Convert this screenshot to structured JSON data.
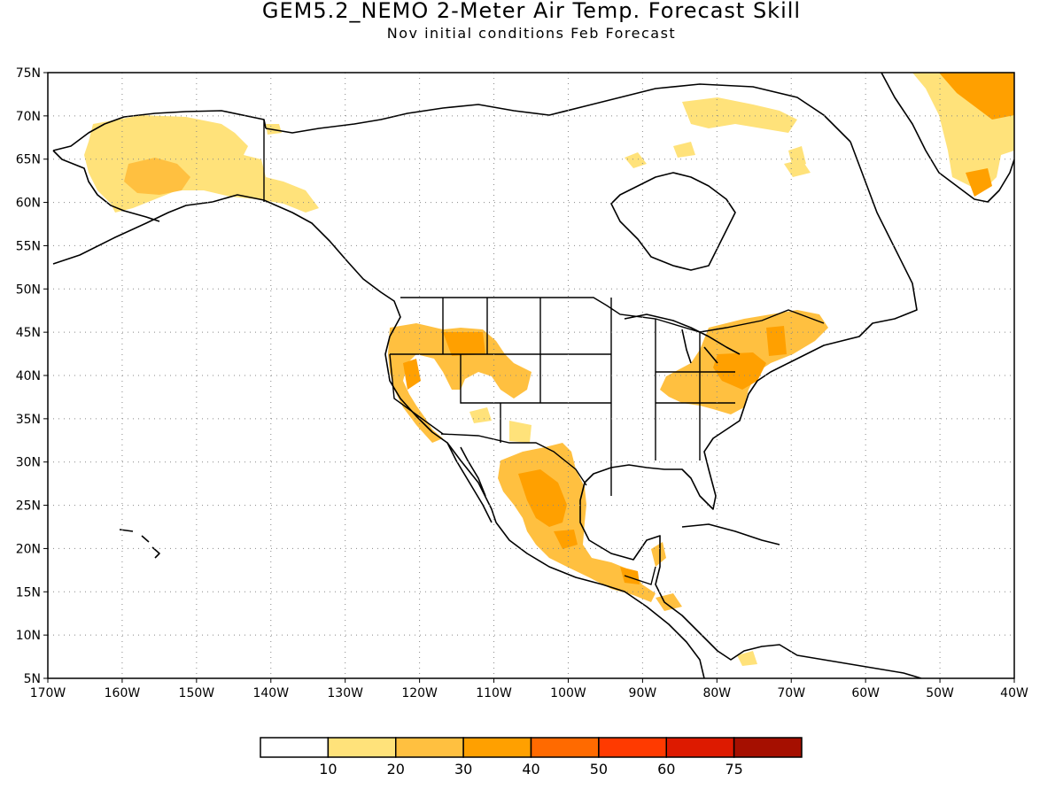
{
  "title": "GEM5.2_NEMO 2-Meter Air Temp. Forecast Skill",
  "subtitle": "Nov initial conditions  Feb Forecast",
  "map": {
    "lon_range": [
      -170,
      -40
    ],
    "lat_range": [
      5,
      75
    ],
    "lat_labels": [
      "5N",
      "10N",
      "15N",
      "20N",
      "25N",
      "30N",
      "35N",
      "40N",
      "45N",
      "50N",
      "55N",
      "60N",
      "65N",
      "70N",
      "75N"
    ],
    "lon_labels": [
      "170W",
      "160W",
      "150W",
      "140W",
      "130W",
      "120W",
      "110W",
      "100W",
      "90W",
      "80W",
      "70W",
      "60W",
      "50W",
      "40W"
    ],
    "grid": "dotted"
  },
  "colorbar": {
    "colors": [
      "#ffffff",
      "#ffe27a",
      "#ffc040",
      "#ffa000",
      "#ff6a00",
      "#ff3a00",
      "#dd1a00",
      "#a50f00"
    ],
    "labels": [
      "10",
      "20",
      "30",
      "40",
      "50",
      "60",
      "75"
    ]
  },
  "skill_regions": [
    {
      "name": "alaska",
      "level": 1
    },
    {
      "name": "alaska-core",
      "level": 2
    },
    {
      "name": "yukon",
      "level": 1
    },
    {
      "name": "greenland-east",
      "level": 1
    },
    {
      "name": "greenland-core",
      "level": 3
    },
    {
      "name": "baffin-north",
      "level": 1
    },
    {
      "name": "labrador-north",
      "level": 1
    },
    {
      "name": "us-west",
      "level": 2
    },
    {
      "name": "us-west-core",
      "level": 3
    },
    {
      "name": "us-southwest",
      "level": 1
    },
    {
      "name": "us-northeast",
      "level": 2
    },
    {
      "name": "us-northeast-core",
      "level": 3
    },
    {
      "name": "mexico",
      "level": 2
    },
    {
      "name": "mexico-core",
      "level": 3
    },
    {
      "name": "central-america",
      "level": 2
    },
    {
      "name": "caribbean-south",
      "level": 1
    }
  ]
}
